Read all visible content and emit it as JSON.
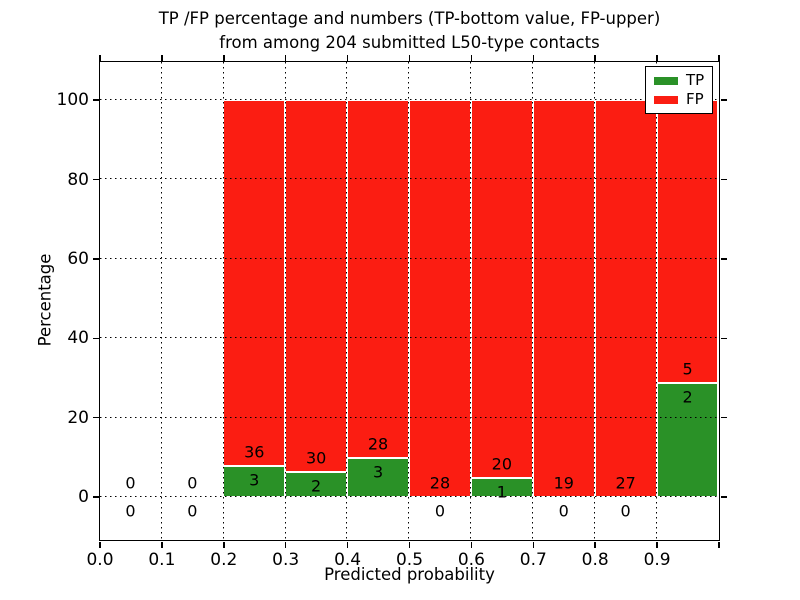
{
  "chart_data": {
    "type": "bar",
    "stacked": true,
    "title_line1": "TP /FP percentage and numbers (TP-bottom value, FP-upper)",
    "title_line2": "from among 204 submitted L50-type contacts",
    "xlabel": "Predicted probability",
    "ylabel": "Percentage",
    "xlim": [
      0.0,
      1.0
    ],
    "ylim": [
      -10.8,
      109.6
    ],
    "grid": true,
    "grid_style": "dotted",
    "legend_position": "upper right",
    "xticks": [
      "0.0",
      "0.1",
      "0.2",
      "0.3",
      "0.4",
      "0.5",
      "0.6",
      "0.7",
      "0.8",
      "0.9"
    ],
    "yticks": [
      0,
      20,
      40,
      60,
      80,
      100
    ],
    "series": [
      {
        "name": "TP",
        "color": "#2a9127"
      },
      {
        "name": "FP",
        "color": "#fb1d12"
      }
    ],
    "note": "bars stacked to 100%; TP% = tp/(tp+fp)*100",
    "bins": [
      {
        "range": [
          0.0,
          0.1
        ],
        "tp": 0,
        "fp": 0
      },
      {
        "range": [
          0.1,
          0.2
        ],
        "tp": 0,
        "fp": 0
      },
      {
        "range": [
          0.2,
          0.3
        ],
        "tp": 3,
        "fp": 36
      },
      {
        "range": [
          0.3,
          0.4
        ],
        "tp": 2,
        "fp": 30
      },
      {
        "range": [
          0.4,
          0.5
        ],
        "tp": 3,
        "fp": 28
      },
      {
        "range": [
          0.5,
          0.6
        ],
        "tp": 0,
        "fp": 28
      },
      {
        "range": [
          0.6,
          0.7
        ],
        "tp": 1,
        "fp": 20
      },
      {
        "range": [
          0.7,
          0.8
        ],
        "tp": 0,
        "fp": 19
      },
      {
        "range": [
          0.8,
          0.9
        ],
        "tp": 0,
        "fp": 27
      },
      {
        "range": [
          0.9,
          1.0
        ],
        "tp": 2,
        "fp": 5
      }
    ]
  }
}
